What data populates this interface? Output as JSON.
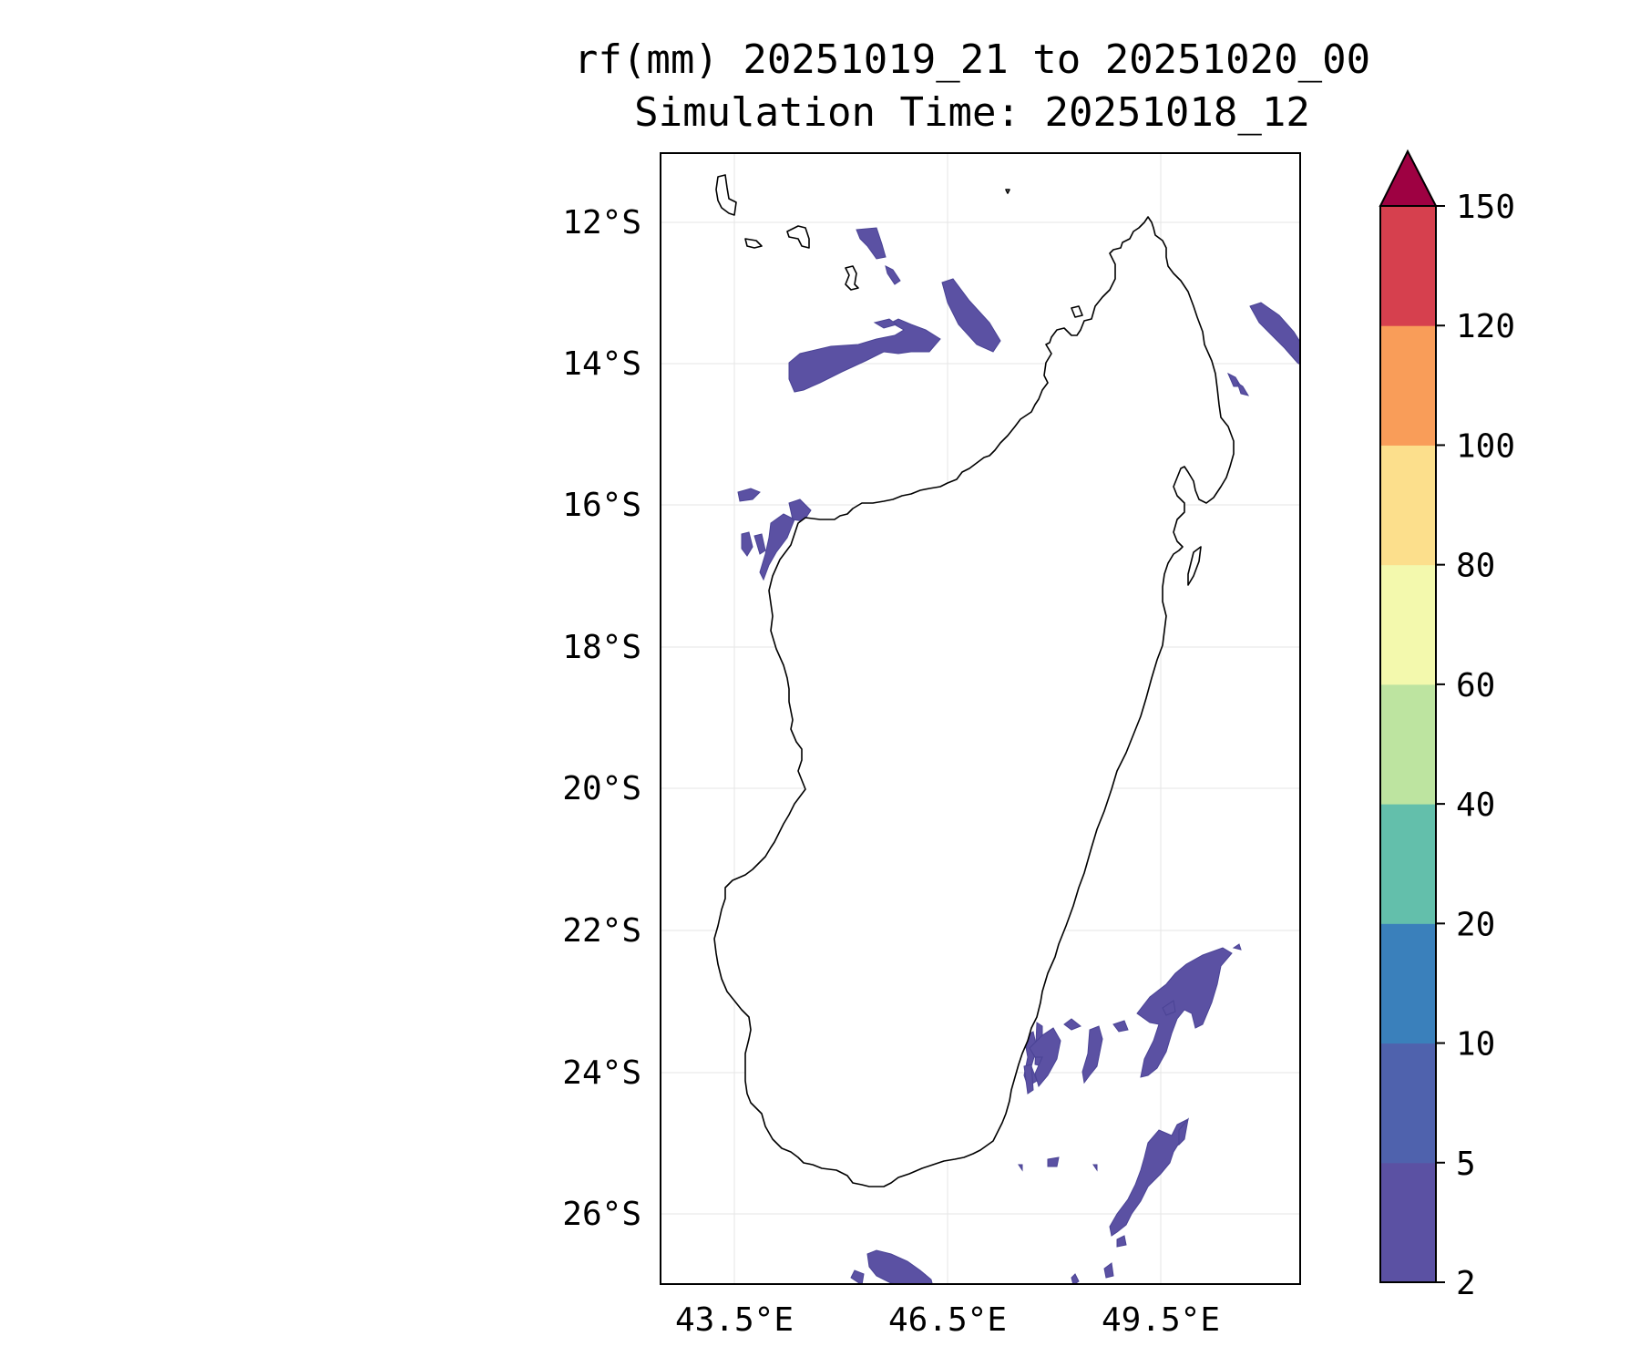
{
  "title": {
    "line1": "rf(mm) 20251019_21 to 20251020_00",
    "line2": "Simulation Time: 20251018_12"
  },
  "map": {
    "lat_ticks": [
      "12°S",
      "14°S",
      "16°S",
      "18°S",
      "20°S",
      "22°S",
      "24°S",
      "26°S"
    ],
    "lon_ticks": [
      "43.5°E",
      "46.5°E",
      "49.5°E"
    ],
    "grid": true,
    "land_fill": "#ffffff",
    "coastline_color": "#000000",
    "rain_color": "#5b51a3"
  },
  "colorbar": {
    "levels": [
      "2",
      "5",
      "10",
      "20",
      "40",
      "60",
      "80",
      "100",
      "120",
      "150"
    ],
    "colors": [
      "#5b51a3",
      "#4f62ad",
      "#3a80bb",
      "#63bfab",
      "#bde4a0",
      "#f3f9ad",
      "#fcdf8c",
      "#f99d59",
      "#d6404e"
    ],
    "extend_color": "#9e0142"
  }
}
